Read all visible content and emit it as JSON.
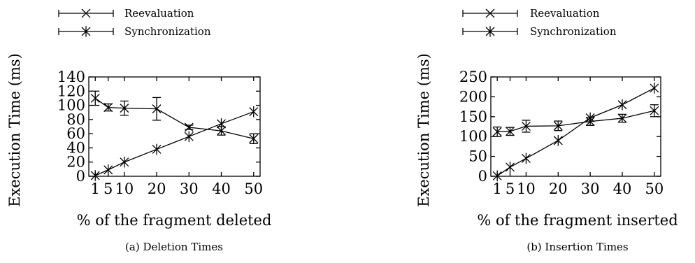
{
  "chart_data": [
    {
      "type": "line",
      "caption": "(a) Deletion Times",
      "xlabel": "% of the fragment deleted",
      "ylabel": "Execution Time (ms)",
      "x": [
        1,
        5,
        10,
        20,
        30,
        40,
        50
      ],
      "x_ticks": [
        "1",
        "5",
        "10",
        "20",
        "30",
        "40",
        "50"
      ],
      "y_ticks": [
        "0",
        "20",
        "40",
        "60",
        "80",
        "100",
        "120",
        "140"
      ],
      "ylim": [
        0,
        140
      ],
      "legend_position": "top",
      "series": [
        {
          "name": "Reevaluation",
          "marker": "x",
          "values": [
            110,
            97,
            96,
            95,
            69,
            64,
            53
          ],
          "err": [
            10,
            5,
            10,
            16,
            3,
            6,
            7
          ]
        },
        {
          "name": "Synchronization",
          "marker": "asterisk",
          "values": [
            1,
            9,
            20,
            38,
            56,
            74,
            91
          ],
          "err": [
            0,
            0,
            0,
            0,
            0,
            0,
            0
          ]
        }
      ]
    },
    {
      "type": "line",
      "caption": "(b) Insertion Times",
      "xlabel": "% of the fragment inserted",
      "ylabel": "Execution Time (ms)",
      "x": [
        1,
        5,
        10,
        20,
        30,
        40,
        50
      ],
      "x_ticks": [
        "1",
        "5",
        "10",
        "20",
        "30",
        "40",
        "50"
      ],
      "y_ticks": [
        "0",
        "50",
        "100",
        "150",
        "200",
        "250"
      ],
      "ylim": [
        0,
        250
      ],
      "legend_position": "top",
      "series": [
        {
          "name": "Reevaluation",
          "marker": "x",
          "values": [
            112,
            113,
            126,
            127,
            138,
            146,
            165
          ],
          "err": [
            12,
            10,
            15,
            12,
            10,
            10,
            15
          ]
        },
        {
          "name": "Synchronization",
          "marker": "asterisk",
          "values": [
            1,
            23,
            45,
            90,
            147,
            180,
            222
          ],
          "err": [
            0,
            0,
            0,
            0,
            0,
            0,
            0
          ]
        }
      ]
    }
  ]
}
